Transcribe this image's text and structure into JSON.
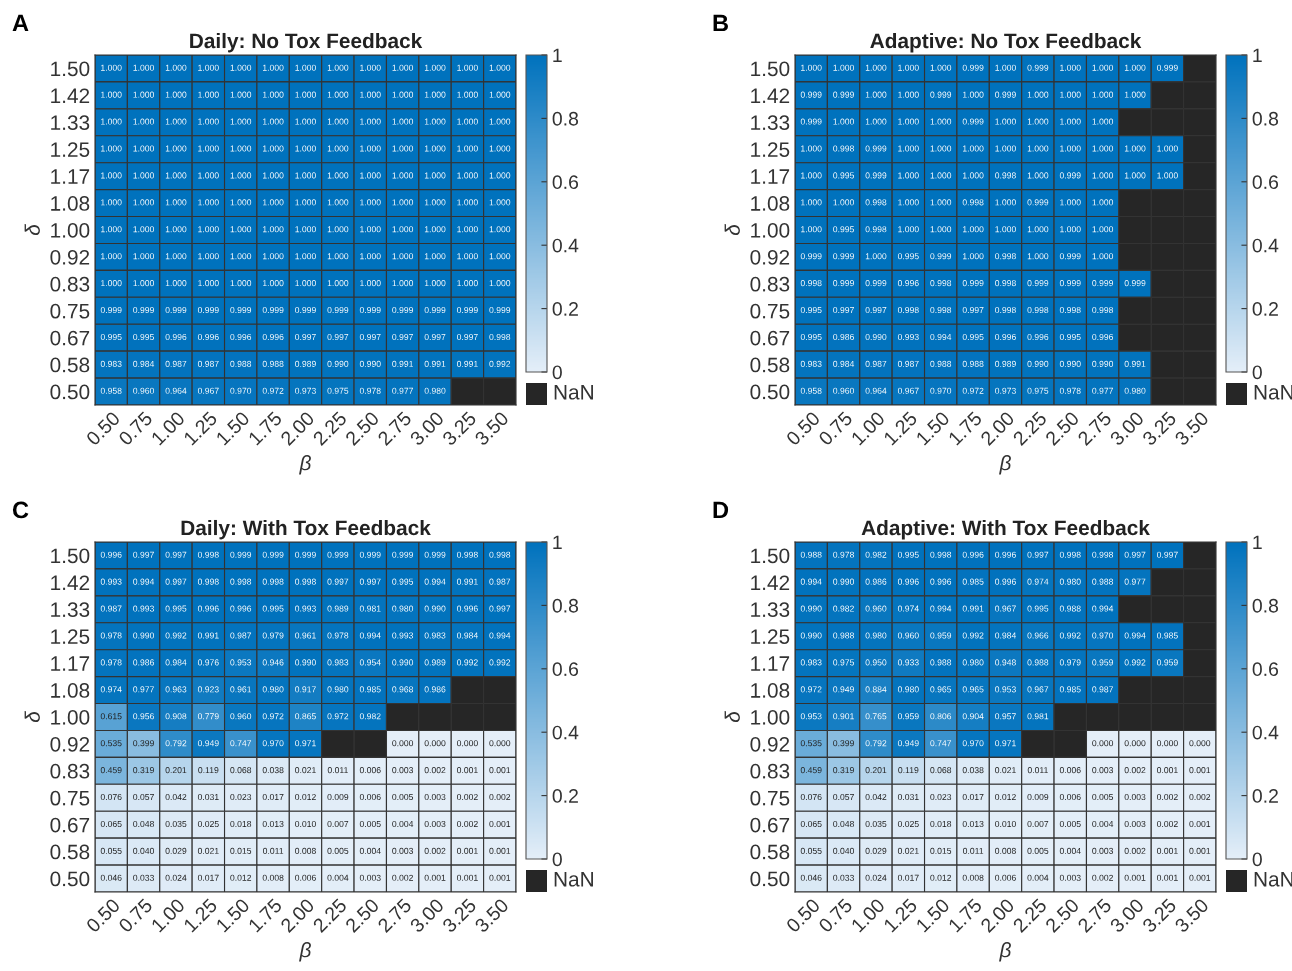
{
  "chart_data": [
    {
      "type": "heatmap",
      "title": "Daily: No Tox Feedback",
      "xlabel": "β",
      "ylabel": "δ",
      "annotations": [
        "A",
        "NaN"
      ],
      "categories": [
        "0.50",
        "0.75",
        "1.00",
        "1.25",
        "1.50",
        "1.75",
        "2.00",
        "2.25",
        "2.50",
        "2.75",
        "3.00",
        "3.25",
        "3.50"
      ],
      "y_categories": [
        "1.50",
        "1.42",
        "1.33",
        "1.25",
        "1.17",
        "1.08",
        "1.00",
        "0.92",
        "0.83",
        "0.75",
        "0.67",
        "0.58",
        "0.50"
      ],
      "clim": [
        0,
        1
      ],
      "cticks": [
        0,
        0.2,
        0.4,
        0.6,
        0.8,
        1
      ],
      "cells": [
        [
          1.0,
          1.0,
          1.0,
          1.0,
          1.0,
          1.0,
          1.0,
          1.0,
          1.0,
          1.0,
          1.0,
          1.0,
          1.0
        ],
        [
          1.0,
          1.0,
          1.0,
          1.0,
          1.0,
          1.0,
          1.0,
          1.0,
          1.0,
          1.0,
          1.0,
          1.0,
          1.0
        ],
        [
          1.0,
          1.0,
          1.0,
          1.0,
          1.0,
          1.0,
          1.0,
          1.0,
          1.0,
          1.0,
          1.0,
          1.0,
          1.0
        ],
        [
          1.0,
          1.0,
          1.0,
          1.0,
          1.0,
          1.0,
          1.0,
          1.0,
          1.0,
          1.0,
          1.0,
          1.0,
          1.0
        ],
        [
          1.0,
          1.0,
          1.0,
          1.0,
          1.0,
          1.0,
          1.0,
          1.0,
          1.0,
          1.0,
          1.0,
          1.0,
          1.0
        ],
        [
          1.0,
          1.0,
          1.0,
          1.0,
          1.0,
          1.0,
          1.0,
          1.0,
          1.0,
          1.0,
          1.0,
          1.0,
          1.0
        ],
        [
          1.0,
          1.0,
          1.0,
          1.0,
          1.0,
          1.0,
          1.0,
          1.0,
          1.0,
          1.0,
          1.0,
          1.0,
          1.0
        ],
        [
          1.0,
          1.0,
          1.0,
          1.0,
          1.0,
          1.0,
          1.0,
          1.0,
          1.0,
          1.0,
          1.0,
          1.0,
          1.0
        ],
        [
          1.0,
          1.0,
          1.0,
          1.0,
          1.0,
          1.0,
          1.0,
          1.0,
          1.0,
          1.0,
          1.0,
          1.0,
          1.0
        ],
        [
          0.999,
          0.999,
          0.999,
          0.999,
          0.999,
          0.999,
          0.999,
          0.999,
          0.999,
          0.999,
          0.999,
          0.999,
          0.999
        ],
        [
          0.995,
          0.995,
          0.996,
          0.996,
          0.996,
          0.996,
          0.997,
          0.997,
          0.997,
          0.997,
          0.997,
          0.997,
          0.998
        ],
        [
          0.983,
          0.984,
          0.987,
          0.987,
          0.988,
          0.988,
          0.989,
          0.99,
          0.99,
          0.991,
          0.991,
          0.991,
          0.992
        ],
        [
          0.958,
          0.96,
          0.964,
          0.967,
          0.97,
          0.972,
          0.973,
          0.975,
          0.978,
          0.977,
          0.98,
          null,
          null
        ]
      ],
      "cell_labels": [
        [
          "1.000",
          "1.000",
          "1.000",
          "1.000",
          "1.000",
          "1.000",
          "1.000",
          "1.000",
          "1.000",
          "1.000",
          "1.000",
          "1.000",
          "1.000"
        ],
        [
          "1.000",
          "1.000",
          "1.000",
          "1.000",
          "1.000",
          "1.000",
          "1.000",
          "1.000",
          "1.000",
          "1.000",
          "1.000",
          "1.000",
          "1.000"
        ],
        [
          "1.000",
          "1.000",
          "1.000",
          "1.000",
          "1.000",
          "1.000",
          "1.000",
          "1.000",
          "1.000",
          "1.000",
          "1.000",
          "1.000",
          "1.000"
        ],
        [
          "1.000",
          "1.000",
          "1.000",
          "1.000",
          "1.000",
          "1.000",
          "1.000",
          "1.000",
          "1.000",
          "1.000",
          "1.000",
          "1.000",
          "1.000"
        ],
        [
          "1.000",
          "1.000",
          "1.000",
          "1.000",
          "1.000",
          "1.000",
          "1.000",
          "1.000",
          "1.000",
          "1.000",
          "1.000",
          "1.000",
          "1.000"
        ],
        [
          "1.000",
          "1.000",
          "1.000",
          "1.000",
          "1.000",
          "1.000",
          "1.000",
          "1.000",
          "1.000",
          "1.000",
          "1.000",
          "1.000",
          "1.000"
        ],
        [
          "1.000",
          "1.000",
          "1.000",
          "1.000",
          "1.000",
          "1.000",
          "1.000",
          "1.000",
          "1.000",
          "1.000",
          "1.000",
          "1.000",
          "1.000"
        ],
        [
          "1.000",
          "1.000",
          "1.000",
          "1.000",
          "1.000",
          "1.000",
          "1.000",
          "1.000",
          "1.000",
          "1.000",
          "1.000",
          "1.000",
          "1.000"
        ],
        [
          "1.000",
          "1.000",
          "1.000",
          "1.000",
          "1.000",
          "1.000",
          "1.000",
          "1.000",
          "1.000",
          "1.000",
          "1.000",
          "1.000",
          "1.000"
        ],
        [
          "0.999",
          "0.999",
          "0.999",
          "0.999",
          "0.999",
          "0.999",
          "0.999",
          "0.999",
          "0.999",
          "0.999",
          "0.999",
          "0.999",
          "0.999"
        ],
        [
          "0.995",
          "0.995",
          "0.996",
          "0.996",
          "0.996",
          "0.996",
          "0.997",
          "0.997",
          "0.997",
          "0.997",
          "0.997",
          "0.997",
          "0.998"
        ],
        [
          "0.983",
          "0.984",
          "0.987",
          "0.987",
          "0.988",
          "0.988",
          "0.989",
          "0.990",
          "0.990",
          "0.991",
          "0.991",
          "0.991",
          "0.992"
        ],
        [
          "0.958",
          "0.960",
          "0.964",
          "0.967",
          "0.970",
          "0.972",
          "0.973",
          "0.975",
          "0.978",
          "0.977",
          "0.980",
          null,
          null
        ]
      ]
    },
    {
      "type": "heatmap",
      "title": "Adaptive: No Tox Feedback",
      "xlabel": "β",
      "ylabel": "δ",
      "annotations": [
        "B",
        "NaN"
      ],
      "categories": [
        "0.50",
        "0.75",
        "1.00",
        "1.25",
        "1.50",
        "1.75",
        "2.00",
        "2.25",
        "2.50",
        "2.75",
        "3.00",
        "3.25",
        "3.50"
      ],
      "y_categories": [
        "1.50",
        "1.42",
        "1.33",
        "1.25",
        "1.17",
        "1.08",
        "1.00",
        "0.92",
        "0.83",
        "0.75",
        "0.67",
        "0.58",
        "0.50"
      ],
      "clim": [
        0,
        1
      ],
      "cticks": [
        0,
        0.2,
        0.4,
        0.6,
        0.8,
        1
      ],
      "cells": [
        [
          1.0,
          1.0,
          1.0,
          1.0,
          1.0,
          0.999,
          1.0,
          0.999,
          1.0,
          1.0,
          1.0,
          0.999,
          null
        ],
        [
          0.999,
          0.999,
          1.0,
          1.0,
          0.999,
          1.0,
          0.999,
          1.0,
          1.0,
          1.0,
          1.0,
          null,
          null
        ],
        [
          0.999,
          1.0,
          1.0,
          1.0,
          1.0,
          0.999,
          1.0,
          1.0,
          1.0,
          1.0,
          null,
          null,
          null
        ],
        [
          1.0,
          0.998,
          0.999,
          1.0,
          1.0,
          1.0,
          1.0,
          1.0,
          1.0,
          1.0,
          1.0,
          1.0,
          null
        ],
        [
          1.0,
          0.995,
          0.999,
          1.0,
          1.0,
          1.0,
          0.998,
          1.0,
          0.999,
          1.0,
          1.0,
          1.0,
          null
        ],
        [
          1.0,
          1.0,
          0.998,
          1.0,
          1.0,
          0.998,
          1.0,
          0.999,
          1.0,
          1.0,
          null,
          null,
          null
        ],
        [
          1.0,
          0.995,
          0.998,
          1.0,
          1.0,
          1.0,
          1.0,
          1.0,
          1.0,
          1.0,
          null,
          null,
          null
        ],
        [
          0.999,
          0.999,
          1.0,
          0.995,
          0.999,
          1.0,
          0.998,
          1.0,
          0.999,
          1.0,
          null,
          null,
          null
        ],
        [
          0.998,
          0.999,
          0.999,
          0.996,
          0.998,
          0.999,
          0.998,
          0.999,
          0.999,
          0.999,
          0.999,
          null,
          null
        ],
        [
          0.995,
          0.997,
          0.997,
          0.998,
          0.998,
          0.997,
          0.998,
          0.998,
          0.998,
          0.998,
          null,
          null,
          null
        ],
        [
          0.995,
          0.986,
          0.99,
          0.993,
          0.994,
          0.995,
          0.996,
          0.996,
          0.995,
          0.996,
          null,
          null,
          null
        ],
        [
          0.983,
          0.984,
          0.987,
          0.987,
          0.988,
          0.988,
          0.989,
          0.99,
          0.99,
          0.99,
          0.991,
          null,
          null
        ],
        [
          0.958,
          0.96,
          0.964,
          0.967,
          0.97,
          0.972,
          0.973,
          0.975,
          0.978,
          0.977,
          0.98,
          null,
          null
        ]
      ],
      "cell_labels": [
        [
          "1.000",
          "1.000",
          "1.000",
          "1.000",
          "1.000",
          "0.999",
          "1.000",
          "0.999",
          "1.000",
          "1.000",
          "1.000",
          "0.999",
          null
        ],
        [
          "0.999",
          "0.999",
          "1.000",
          "1.000",
          "0.999",
          "1.000",
          "0.999",
          "1.000",
          "1.000",
          "1.000",
          "1.000",
          null,
          null
        ],
        [
          "0.999",
          "1.000",
          "1.000",
          "1.000",
          "1.000",
          "0.999",
          "1.000",
          "1.000",
          "1.000",
          "1.000",
          null,
          null,
          null
        ],
        [
          "1.000",
          "0.998",
          "0.999",
          "1.000",
          "1.000",
          "1.000",
          "1.000",
          "1.000",
          "1.000",
          "1.000",
          "1.000",
          "1.000",
          null
        ],
        [
          "1.000",
          "0.995",
          "0.999",
          "1.000",
          "1.000",
          "1.000",
          "0.998",
          "1.000",
          "0.999",
          "1.000",
          "1.000",
          "1.000",
          null
        ],
        [
          "1.000",
          "1.000",
          "0.998",
          "1.000",
          "1.000",
          "0.998",
          "1.000",
          "0.999",
          "1.000",
          "1.000",
          null,
          null,
          null
        ],
        [
          "1.000",
          "0.995",
          "0.998",
          "1.000",
          "1.000",
          "1.000",
          "1.000",
          "1.000",
          "1.000",
          "1.000",
          null,
          null,
          null
        ],
        [
          "0.999",
          "0.999",
          "1.000",
          "0.995",
          "0.999",
          "1.000",
          "0.998",
          "1.000",
          "0.999",
          "1.000",
          null,
          null,
          null
        ],
        [
          "0.998",
          "0.999",
          "0.999",
          "0.996",
          "0.998",
          "0.999",
          "0.998",
          "0.999",
          "0.999",
          "0.999",
          "0.999",
          null,
          null
        ],
        [
          "0.995",
          "0.997",
          "0.997",
          "0.998",
          "0.998",
          "0.997",
          "0.998",
          "0.998",
          "0.998",
          "0.998",
          null,
          null,
          null
        ],
        [
          "0.995",
          "0.986",
          "0.990",
          "0.993",
          "0.994",
          "0.995",
          "0.996",
          "0.996",
          "0.995",
          "0.996",
          null,
          null,
          null
        ],
        [
          "0.983",
          "0.984",
          "0.987",
          "0.987",
          "0.988",
          "0.988",
          "0.989",
          "0.990",
          "0.990",
          "0.990",
          "0.991",
          null,
          null
        ],
        [
          "0.958",
          "0.960",
          "0.964",
          "0.967",
          "0.970",
          "0.972",
          "0.973",
          "0.975",
          "0.978",
          "0.977",
          "0.980",
          null,
          null
        ]
      ]
    },
    {
      "type": "heatmap",
      "title": "Daily: With Tox Feedback",
      "xlabel": "β",
      "ylabel": "δ",
      "annotations": [
        "C",
        "NaN"
      ],
      "categories": [
        "0.50",
        "0.75",
        "1.00",
        "1.25",
        "1.50",
        "1.75",
        "2.00",
        "2.25",
        "2.50",
        "2.75",
        "3.00",
        "3.25",
        "3.50"
      ],
      "y_categories": [
        "1.50",
        "1.42",
        "1.33",
        "1.25",
        "1.17",
        "1.08",
        "1.00",
        "0.92",
        "0.83",
        "0.75",
        "0.67",
        "0.58",
        "0.50"
      ],
      "clim": [
        0,
        1
      ],
      "cticks": [
        0,
        0.2,
        0.4,
        0.6,
        0.8,
        1
      ],
      "cells": [
        [
          0.996,
          0.997,
          0.997,
          0.998,
          0.999,
          0.999,
          0.999,
          0.999,
          0.999,
          0.999,
          0.999,
          0.998,
          0.998
        ],
        [
          0.993,
          0.994,
          0.997,
          0.998,
          0.998,
          0.998,
          0.998,
          0.997,
          0.997,
          0.995,
          0.994,
          0.991,
          0.987
        ],
        [
          0.987,
          0.993,
          0.995,
          0.996,
          0.996,
          0.995,
          0.993,
          0.989,
          0.981,
          0.98,
          0.99,
          0.996,
          0.997
        ],
        [
          0.978,
          0.99,
          0.992,
          0.991,
          0.987,
          0.979,
          0.961,
          0.978,
          0.994,
          0.993,
          0.983,
          0.984,
          0.994
        ],
        [
          0.978,
          0.986,
          0.984,
          0.976,
          0.953,
          0.946,
          0.99,
          0.983,
          0.954,
          0.99,
          0.989,
          0.992,
          0.992
        ],
        [
          0.974,
          0.977,
          0.963,
          0.923,
          0.961,
          0.98,
          0.917,
          0.98,
          0.985,
          0.968,
          0.986,
          null,
          null
        ],
        [
          0.615,
          0.956,
          0.908,
          0.779,
          0.96,
          0.972,
          0.865,
          0.972,
          0.982,
          null,
          null,
          null,
          null
        ],
        [
          0.535,
          0.399,
          0.792,
          0.949,
          0.747,
          0.97,
          0.971,
          null,
          null,
          0.0,
          0.0,
          0.0,
          0.0
        ],
        [
          0.459,
          0.319,
          0.201,
          0.119,
          0.068,
          0.038,
          0.021,
          0.011,
          0.006,
          0.003,
          0.002,
          0.001,
          0.001
        ],
        [
          0.076,
          0.057,
          0.042,
          0.031,
          0.023,
          0.017,
          0.012,
          0.009,
          0.006,
          0.005,
          0.003,
          0.002,
          0.002
        ],
        [
          0.065,
          0.048,
          0.035,
          0.025,
          0.018,
          0.013,
          0.01,
          0.007,
          0.005,
          0.004,
          0.003,
          0.002,
          0.001
        ],
        [
          0.055,
          0.04,
          0.029,
          0.021,
          0.015,
          0.011,
          0.008,
          0.005,
          0.004,
          0.003,
          0.002,
          0.001,
          0.001
        ],
        [
          0.046,
          0.033,
          0.024,
          0.017,
          0.012,
          0.008,
          0.006,
          0.004,
          0.003,
          0.002,
          0.001,
          0.001,
          0.001
        ]
      ],
      "cell_labels": [
        [
          "0.996",
          "0.997",
          "0.997",
          "0.998",
          "0.999",
          "0.999",
          "0.999",
          "0.999",
          "0.999",
          "0.999",
          "0.999",
          "0.998",
          "0.998"
        ],
        [
          "0.993",
          "0.994",
          "0.997",
          "0.998",
          "0.998",
          "0.998",
          "0.998",
          "0.997",
          "0.997",
          "0.995",
          "0.994",
          "0.991",
          "0.987"
        ],
        [
          "0.987",
          "0.993",
          "0.995",
          "0.996",
          "0.996",
          "0.995",
          "0.993",
          "0.989",
          "0.981",
          "0.980",
          "0.990",
          "0.996",
          "0.997"
        ],
        [
          "0.978",
          "0.990",
          "0.992",
          "0.991",
          "0.987",
          "0.979",
          "0.961",
          "0.978",
          "0.994",
          "0.993",
          "0.983",
          "0.984",
          "0.994"
        ],
        [
          "0.978",
          "0.986",
          "0.984",
          "0.976",
          "0.953",
          "0.946",
          "0.990",
          "0.983",
          "0.954",
          "0.990",
          "0.989",
          "0.992",
          "0.992"
        ],
        [
          "0.974",
          "0.977",
          "0.963",
          "0.923",
          "0.961",
          "0.980",
          "0.917",
          "0.980",
          "0.985",
          "0.968",
          "0.986",
          null,
          null
        ],
        [
          "0.615",
          "0.956",
          "0.908",
          "0.779",
          "0.960",
          "0.972",
          "0.865",
          "0.972",
          "0.982",
          null,
          null,
          null,
          null
        ],
        [
          "0.535",
          "0.399",
          "0.792",
          "0.949",
          "0.747",
          "0.970",
          "0.971",
          null,
          null,
          "0.000",
          "0.000",
          "0.000",
          "0.000"
        ],
        [
          "0.459",
          "0.319",
          "0.201",
          "0.119",
          "0.068",
          "0.038",
          "0.021",
          "0.011",
          "0.006",
          "0.003",
          "0.002",
          "0.001",
          "0.001"
        ],
        [
          "0.076",
          "0.057",
          "0.042",
          "0.031",
          "0.023",
          "0.017",
          "0.012",
          "0.009",
          "0.006",
          "0.005",
          "0.003",
          "0.002",
          "0.002"
        ],
        [
          "0.065",
          "0.048",
          "0.035",
          "0.025",
          "0.018",
          "0.013",
          "0.010",
          "0.007",
          "0.005",
          "0.004",
          "0.003",
          "0.002",
          "0.001"
        ],
        [
          "0.055",
          "0.040",
          "0.029",
          "0.021",
          "0.015",
          "0.011",
          "0.008",
          "0.005",
          "0.004",
          "0.003",
          "0.002",
          "0.001",
          "0.001"
        ],
        [
          "0.046",
          "0.033",
          "0.024",
          "0.017",
          "0.012",
          "0.008",
          "0.006",
          "0.004",
          "0.003",
          "0.002",
          "0.001",
          "0.001",
          "0.001"
        ]
      ]
    },
    {
      "type": "heatmap",
      "title": "Adaptive: With Tox Feedback",
      "xlabel": "β",
      "ylabel": "δ",
      "annotations": [
        "D",
        "NaN"
      ],
      "categories": [
        "0.50",
        "0.75",
        "1.00",
        "1.25",
        "1.50",
        "1.75",
        "2.00",
        "2.25",
        "2.50",
        "2.75",
        "3.00",
        "3.25",
        "3.50"
      ],
      "y_categories": [
        "1.50",
        "1.42",
        "1.33",
        "1.25",
        "1.17",
        "1.08",
        "1.00",
        "0.92",
        "0.83",
        "0.75",
        "0.67",
        "0.58",
        "0.50"
      ],
      "clim": [
        0,
        1
      ],
      "cticks": [
        0,
        0.2,
        0.4,
        0.6,
        0.8,
        1
      ],
      "cells": [
        [
          0.988,
          0.978,
          0.982,
          0.995,
          0.998,
          0.996,
          0.996,
          0.997,
          0.998,
          0.998,
          0.997,
          0.997,
          null
        ],
        [
          0.994,
          0.99,
          0.986,
          0.996,
          0.996,
          0.985,
          0.996,
          0.974,
          0.98,
          0.988,
          0.977,
          null,
          null
        ],
        [
          0.99,
          0.982,
          0.96,
          0.974,
          0.994,
          0.991,
          0.967,
          0.995,
          0.988,
          0.994,
          null,
          null,
          null
        ],
        [
          0.99,
          0.988,
          0.98,
          0.96,
          0.959,
          0.992,
          0.984,
          0.966,
          0.992,
          0.97,
          0.994,
          0.985,
          null
        ],
        [
          0.983,
          0.975,
          0.95,
          0.933,
          0.988,
          0.98,
          0.948,
          0.988,
          0.979,
          0.959,
          0.992,
          0.959,
          null
        ],
        [
          0.972,
          0.949,
          0.884,
          0.98,
          0.965,
          0.965,
          0.953,
          0.967,
          0.985,
          0.987,
          null,
          null,
          null
        ],
        [
          0.953,
          0.901,
          0.765,
          0.959,
          0.806,
          0.904,
          0.957,
          0.981,
          null,
          null,
          null,
          null,
          null
        ],
        [
          0.535,
          0.399,
          0.792,
          0.949,
          0.747,
          0.97,
          0.971,
          null,
          null,
          0.0,
          0.0,
          0.0,
          0.0
        ],
        [
          0.459,
          0.319,
          0.201,
          0.119,
          0.068,
          0.038,
          0.021,
          0.011,
          0.006,
          0.003,
          0.002,
          0.001,
          0.001
        ],
        [
          0.076,
          0.057,
          0.042,
          0.031,
          0.023,
          0.017,
          0.012,
          0.009,
          0.006,
          0.005,
          0.003,
          0.002,
          0.002
        ],
        [
          0.065,
          0.048,
          0.035,
          0.025,
          0.018,
          0.013,
          0.01,
          0.007,
          0.005,
          0.004,
          0.003,
          0.002,
          0.001
        ],
        [
          0.055,
          0.04,
          0.029,
          0.021,
          0.015,
          0.011,
          0.008,
          0.005,
          0.004,
          0.003,
          0.002,
          0.001,
          0.001
        ],
        [
          0.046,
          0.033,
          0.024,
          0.017,
          0.012,
          0.008,
          0.006,
          0.004,
          0.003,
          0.002,
          0.001,
          0.001,
          0.001
        ]
      ],
      "cell_labels": [
        [
          "0.988",
          "0.978",
          "0.982",
          "0.995",
          "0.998",
          "0.996",
          "0.996",
          "0.997",
          "0.998",
          "0.998",
          "0.997",
          "0.997",
          null
        ],
        [
          "0.994",
          "0.990",
          "0.986",
          "0.996",
          "0.996",
          "0.985",
          "0.996",
          "0.974",
          "0.980",
          "0.988",
          "0.977",
          null,
          null
        ],
        [
          "0.990",
          "0.982",
          "0.960",
          "0.974",
          "0.994",
          "0.991",
          "0.967",
          "0.995",
          "0.988",
          "0.994",
          null,
          null,
          null
        ],
        [
          "0.990",
          "0.988",
          "0.980",
          "0.960",
          "0.959",
          "0.992",
          "0.984",
          "0.966",
          "0.992",
          "0.970",
          "0.994",
          "0.985",
          null
        ],
        [
          "0.983",
          "0.975",
          "0.950",
          "0.933",
          "0.988",
          "0.980",
          "0.948",
          "0.988",
          "0.979",
          "0.959",
          "0.992",
          "0.959",
          null
        ],
        [
          "0.972",
          "0.949",
          "0.884",
          "0.980",
          "0.965",
          "0.965",
          "0.953",
          "0.967",
          "0.985",
          "0.987",
          null,
          null,
          null
        ],
        [
          "0.953",
          "0.901",
          "0.765",
          "0.959",
          "0.806",
          "0.904",
          "0.957",
          "0.981",
          null,
          null,
          null,
          null,
          null
        ],
        [
          "0.535",
          "0.399",
          "0.792",
          "0.949",
          "0.747",
          "0.970",
          "0.971",
          null,
          null,
          "0.000",
          "0.000",
          "0.000",
          "0.000"
        ],
        [
          "0.459",
          "0.319",
          "0.201",
          "0.119",
          "0.068",
          "0.038",
          "0.021",
          "0.011",
          "0.006",
          "0.003",
          "0.002",
          "0.001",
          "0.001"
        ],
        [
          "0.076",
          "0.057",
          "0.042",
          "0.031",
          "0.023",
          "0.017",
          "0.012",
          "0.009",
          "0.006",
          "0.005",
          "0.003",
          "0.002",
          "0.002"
        ],
        [
          "0.065",
          "0.048",
          "0.035",
          "0.025",
          "0.018",
          "0.013",
          "0.010",
          "0.007",
          "0.005",
          "0.004",
          "0.003",
          "0.002",
          "0.001"
        ],
        [
          "0.055",
          "0.040",
          "0.029",
          "0.021",
          "0.015",
          "0.011",
          "0.008",
          "0.005",
          "0.004",
          "0.003",
          "0.002",
          "0.001",
          "0.001"
        ],
        [
          "0.046",
          "0.033",
          "0.024",
          "0.017",
          "0.012",
          "0.008",
          "0.006",
          "0.004",
          "0.003",
          "0.002",
          "0.001",
          "0.001",
          "0.001"
        ]
      ]
    }
  ]
}
